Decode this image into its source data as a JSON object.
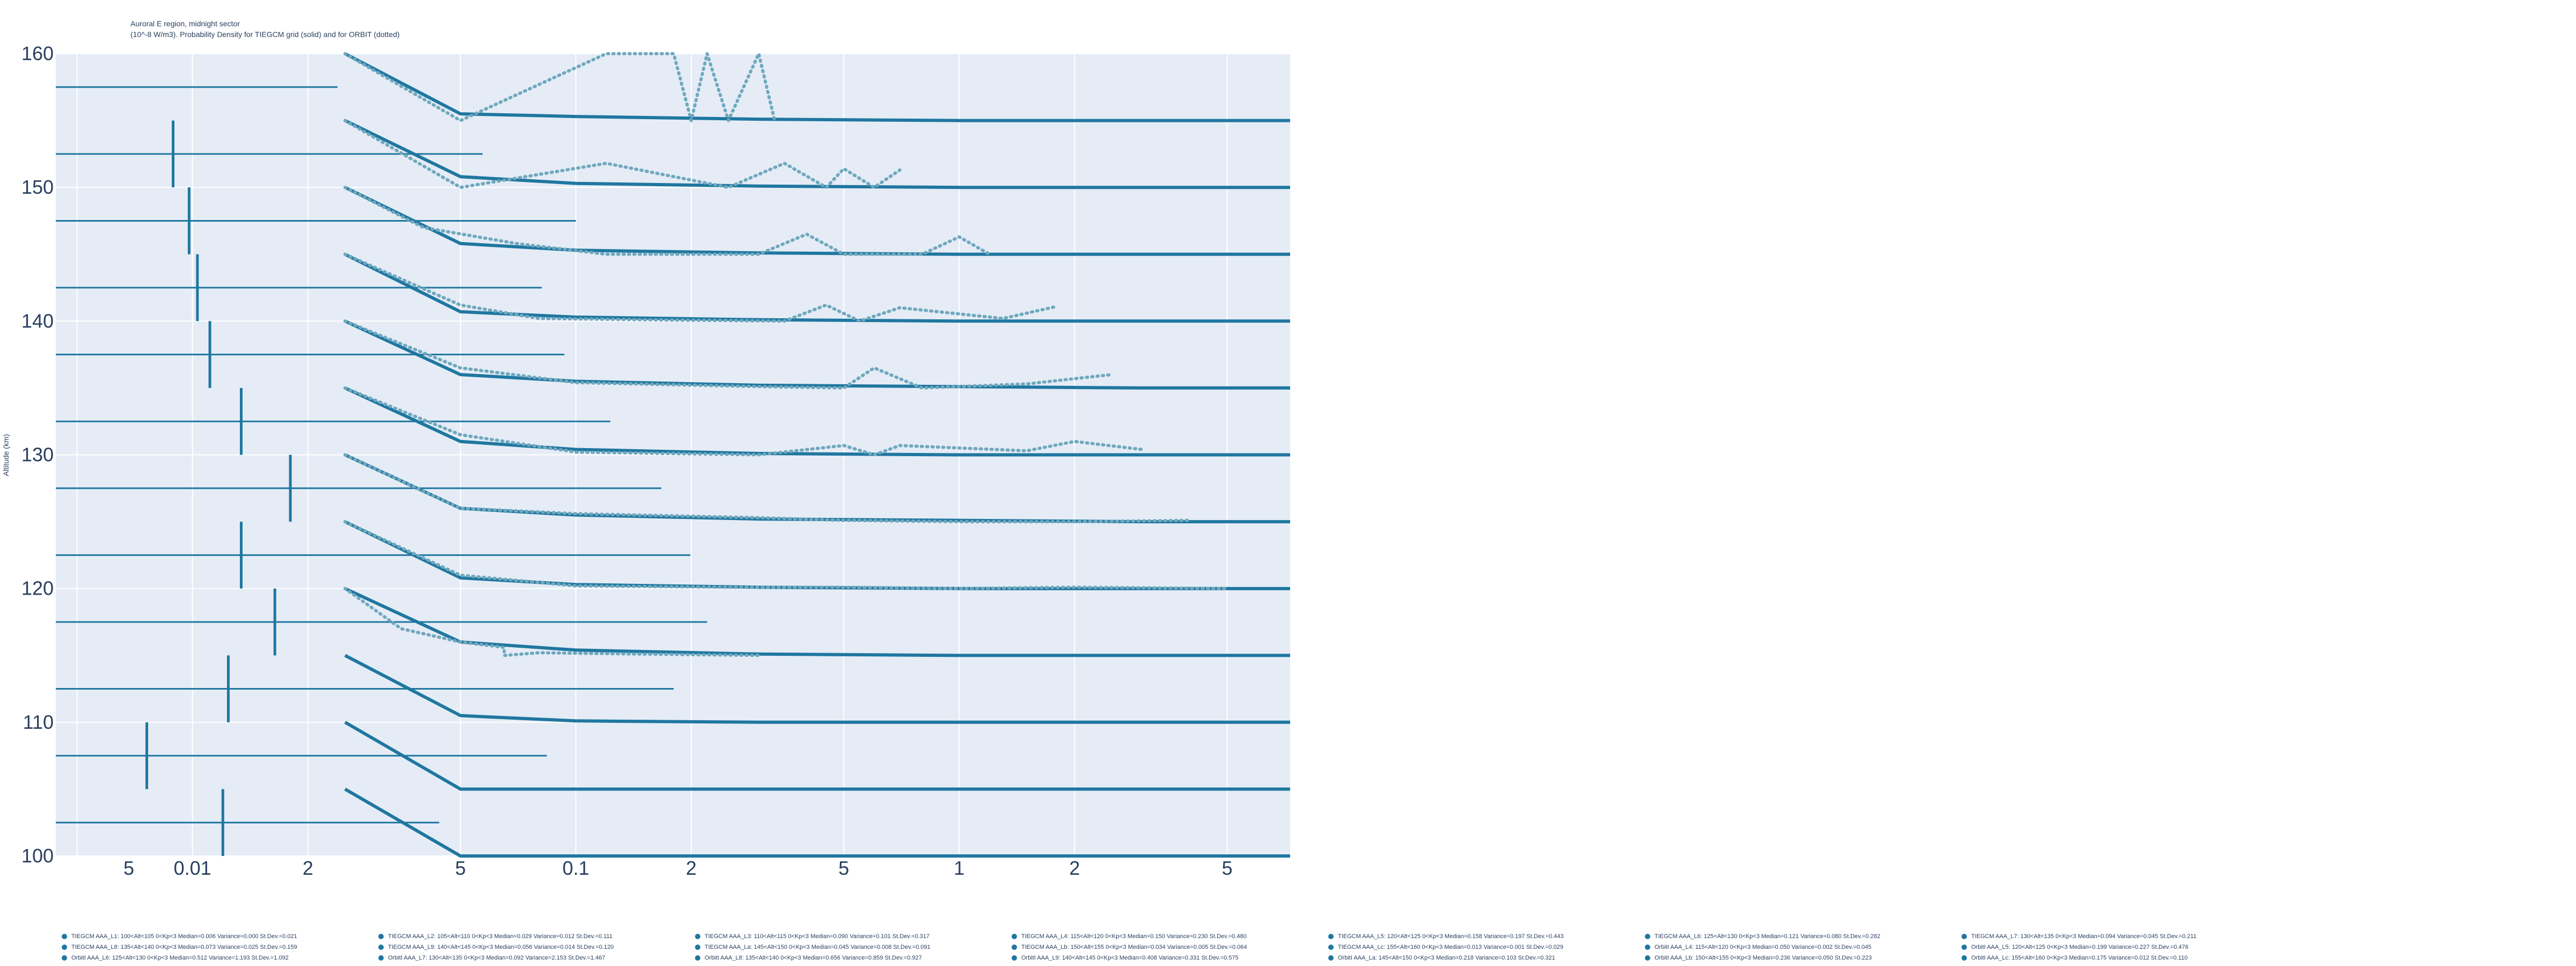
{
  "title": "Auroral E region, midnight sector",
  "subtitle": "(10^-8 W/m3). Probability Density for TIEGCM grid (solid) and for ORBIT (dotted)",
  "colors": {
    "line": "#1f77a0",
    "dotted": "#6fa8be",
    "plot_bg": "#e5ecf6",
    "grid": "#ffffff",
    "text": "#2a3f5f"
  },
  "chart_data": {
    "type": "line",
    "title": "Auroral E region, midnight sector",
    "subtitle": "(10^-8 W/m3). Probability Density for TIEGCM grid (solid) and for ORBIT (dotted)",
    "ylabel": "Altitude (km)",
    "xlabel": "",
    "xscale": "log",
    "xlim": [
      0.0044,
      7.3
    ],
    "ylim": [
      100,
      160
    ],
    "grid": true,
    "x_ticks": [
      {
        "v": 0.002,
        "label": "2"
      },
      {
        "v": 0.005,
        "label": "5"
      },
      {
        "v": 0.01,
        "label": "0.01"
      },
      {
        "v": 0.02,
        "label": "2"
      },
      {
        "v": 0.05,
        "label": "5"
      },
      {
        "v": 0.1,
        "label": "0.1"
      },
      {
        "v": 0.2,
        "label": "2"
      },
      {
        "v": 0.5,
        "label": "5"
      },
      {
        "v": 1,
        "label": "1"
      },
      {
        "v": 2,
        "label": "2"
      },
      {
        "v": 5,
        "label": "5"
      }
    ],
    "y_ticks": [
      100,
      110,
      120,
      130,
      140,
      150,
      160
    ],
    "box_bins": [
      {
        "base": 102.5,
        "median": 0.012,
        "low": 0.0044,
        "high": 0.044
      },
      {
        "base": 107.5,
        "median": 0.0076,
        "low": 0.0044,
        "high": 0.084
      },
      {
        "base": 112.5,
        "median": 0.0124,
        "low": 0.0044,
        "high": 0.18
      },
      {
        "base": 117.5,
        "median": 0.0164,
        "low": 0.0044,
        "high": 0.22
      },
      {
        "base": 122.5,
        "median": 0.0134,
        "low": 0.0044,
        "high": 0.199
      },
      {
        "base": 127.5,
        "median": 0.018,
        "low": 0.0044,
        "high": 0.167
      },
      {
        "base": 132.5,
        "median": 0.0134,
        "low": 0.0044,
        "high": 0.123
      },
      {
        "base": 137.5,
        "median": 0.0111,
        "low": 0.0044,
        "high": 0.0933
      },
      {
        "base": 142.5,
        "median": 0.0103,
        "low": 0.0044,
        "high": 0.0815
      },
      {
        "base": 147.5,
        "median": 0.0098,
        "low": 0.0044,
        "high": 0.1
      },
      {
        "base": 152.5,
        "median": 0.0089,
        "low": 0.0044,
        "high": 0.0571
      },
      {
        "base": 157.5,
        "median": 0.0029,
        "low": 0.0044,
        "high": 0.0239
      }
    ],
    "series": [
      {
        "style": "solid",
        "x": [
          0.025,
          0.05,
          0.1,
          0.3,
          1,
          3,
          7.3
        ],
        "y": [
          105,
          100,
          100,
          100,
          100,
          100,
          100
        ]
      },
      {
        "style": "solid",
        "x": [
          0.025,
          0.05,
          0.1,
          0.3,
          1,
          3,
          7.3
        ],
        "y": [
          110,
          105,
          105,
          105,
          105,
          105,
          105
        ]
      },
      {
        "style": "solid",
        "x": [
          0.025,
          0.05,
          0.1,
          0.3,
          1,
          3,
          7.3
        ],
        "y": [
          115,
          110.5,
          110.1,
          110,
          110,
          110,
          110
        ]
      },
      {
        "style": "solid",
        "x": [
          0.025,
          0.05,
          0.1,
          0.3,
          1,
          3,
          7.3
        ],
        "y": [
          120,
          116,
          115.4,
          115.1,
          115,
          115,
          115
        ]
      },
      {
        "style": "solid",
        "x": [
          0.025,
          0.05,
          0.1,
          0.3,
          1,
          3,
          7.3
        ],
        "y": [
          125,
          120.8,
          120.3,
          120.1,
          120,
          120,
          120
        ]
      },
      {
        "style": "solid",
        "x": [
          0.025,
          0.05,
          0.1,
          0.3,
          1,
          3,
          7.3
        ],
        "y": [
          130,
          126,
          125.5,
          125.2,
          125.1,
          125,
          125
        ]
      },
      {
        "style": "solid",
        "x": [
          0.025,
          0.05,
          0.1,
          0.3,
          1,
          3,
          7.3
        ],
        "y": [
          135,
          131,
          130.4,
          130.1,
          130,
          130,
          130
        ]
      },
      {
        "style": "solid",
        "x": [
          0.025,
          0.05,
          0.1,
          0.3,
          1,
          3,
          7.3
        ],
        "y": [
          140,
          136,
          135.5,
          135.2,
          135.1,
          135,
          135
        ]
      },
      {
        "style": "solid",
        "x": [
          0.025,
          0.05,
          0.1,
          0.3,
          1,
          3,
          7.3
        ],
        "y": [
          145,
          140.7,
          140.3,
          140.1,
          140,
          140,
          140
        ]
      },
      {
        "style": "solid",
        "x": [
          0.025,
          0.05,
          0.1,
          0.3,
          1,
          3,
          7.3
        ],
        "y": [
          150,
          145.8,
          145.3,
          145.1,
          145,
          145,
          145
        ]
      },
      {
        "style": "solid",
        "x": [
          0.025,
          0.05,
          0.1,
          0.3,
          1,
          3,
          7.3
        ],
        "y": [
          155,
          150.8,
          150.3,
          150.1,
          150,
          150,
          150
        ]
      },
      {
        "style": "solid",
        "x": [
          0.025,
          0.05,
          0.1,
          0.3,
          1,
          3,
          7.3
        ],
        "y": [
          160,
          155.5,
          155.3,
          155.1,
          155,
          155,
          155
        ]
      },
      {
        "style": "dotted",
        "x": [
          0.025,
          0.035,
          0.05,
          0.065,
          0.065,
          0.08,
          0.15,
          0.3
        ],
        "y": [
          120,
          117,
          116,
          115.6,
          115,
          115.2,
          115.1,
          115
        ]
      },
      {
        "style": "dotted",
        "x": [
          0.025,
          0.05,
          0.1,
          0.25,
          0.5,
          1,
          2,
          5
        ],
        "y": [
          125,
          121,
          120.2,
          120.1,
          120.1,
          120,
          120.1,
          120
        ]
      },
      {
        "style": "dotted",
        "x": [
          0.025,
          0.05,
          0.1,
          0.3,
          0.5,
          1,
          2,
          4
        ],
        "y": [
          130,
          126,
          125.6,
          125.3,
          125.1,
          125,
          125,
          125.1
        ]
      },
      {
        "style": "dotted",
        "x": [
          0.025,
          0.05,
          0.1,
          0.3,
          0.5,
          0.6,
          0.7,
          1.5,
          2,
          3
        ],
        "y": [
          135,
          131.5,
          130.2,
          130,
          130.7,
          130,
          130.7,
          130.3,
          131,
          130.4
        ]
      },
      {
        "style": "dotted",
        "x": [
          0.025,
          0.05,
          0.1,
          0.3,
          0.5,
          0.6,
          0.8,
          1.5,
          2.5
        ],
        "y": [
          140,
          136.5,
          135.4,
          135.1,
          135,
          136.5,
          135,
          135.3,
          136
        ]
      },
      {
        "style": "dotted",
        "x": [
          0.025,
          0.05,
          0.08,
          0.15,
          0.35,
          0.45,
          0.55,
          0.7,
          1.3,
          1.8
        ],
        "y": [
          145,
          141.2,
          140.2,
          140.1,
          140,
          141.2,
          140,
          141,
          140.2,
          141.1
        ]
      },
      {
        "style": "dotted",
        "x": [
          0.025,
          0.04,
          0.07,
          0.12,
          0.3,
          0.4,
          0.5,
          0.8,
          1,
          1.2
        ],
        "y": [
          150,
          147,
          145.8,
          145,
          145,
          146.5,
          145,
          145,
          146.3,
          145
        ]
      },
      {
        "style": "dotted",
        "x": [
          0.025,
          0.05,
          0.12,
          0.25,
          0.35,
          0.45,
          0.5,
          0.6,
          0.7
        ],
        "y": [
          155,
          150,
          151.8,
          150,
          151.8,
          150,
          151.4,
          150,
          151.3
        ]
      },
      {
        "style": "dotted",
        "x": [
          0.025,
          0.05,
          0.12,
          0.18,
          0.2,
          0.22,
          0.25,
          0.3,
          0.33
        ],
        "y": [
          160,
          155,
          160,
          160,
          155,
          160,
          155,
          160,
          155
        ]
      }
    ]
  },
  "legend": [
    "TIEGCM AAA_L1: 100<Alt<105 0<Kp<3 Median=0.006 Variance=0.000 St.Dev.=0.021",
    "TIEGCM AAA_L2: 105<Alt<110 0<Kp<3 Median=0.029 Variance=0.012 St.Dev.=0.111",
    "TIEGCM AAA_L3: 110<Alt<115 0<Kp<3 Median=0.090 Variance=0.101 St.Dev.=0.317",
    "TIEGCM AAA_L4: 115<Alt<120 0<Kp<3 Median=0.150 Variance=0.230 St.Dev.=0.480",
    "TIEGCM AAA_L5: 120<Alt<125 0<Kp<3 Median=0.158 Variance=0.197 St.Dev.=0.443",
    "TIEGCM AAA_L6: 125<Alt<130 0<Kp<3 Median=0.121 Variance=0.080 St.Dev.=0.282",
    "TIEGCM AAA_L7: 130<Alt<135 0<Kp<3 Median=0.094 Variance=0.045 St.Dev.=0.211",
    "TIEGCM AAA_L8: 135<Alt<140 0<Kp<3 Median=0.073 Variance=0.025 St.Dev.=0.159",
    "TIEGCM AAA_L9: 140<Alt<145 0<Kp<3 Median=0.056 Variance=0.014 St.Dev.=0.120",
    "TIEGCM AAA_La: 145<Alt<150 0<Kp<3 Median=0.045 Variance=0.008 St.Dev.=0.091",
    "TIEGCM AAA_Lb: 150<Alt<155 0<Kp<3 Median=0.034 Variance=0.005 St.Dev.=0.064",
    "TIEGCM AAA_Lc: 155<Alt<160 0<Kp<3 Median=0.013 Variance=0.001 St.Dev.=0.029",
    "OrbitI AAA_L4: 115<Alt<120 0<Kp<3 Median=0.050 Variance=0.002 St.Dev.=0.045",
    "OrbitI AAA_L5: 120<Alt<125 0<Kp<3 Median=0.199 Variance=0.227 St.Dev.=0.476",
    "OrbitI AAA_L6: 125<Alt<130 0<Kp<3 Median=0.512 Variance=1.193 St.Dev.=1.092",
    "OrbitI AAA_L7: 130<Alt<135 0<Kp<3 Median=0.092 Variance=2.153 St.Dev.=1.467",
    "OrbitI AAA_L8: 135<Alt<140 0<Kp<3 Median=0.656 Variance=0.859 St.Dev.=0.927",
    "OrbitI AAA_L9: 140<Alt<145 0<Kp<3 Median=0.408 Variance=0.331 St.Dev.=0.575",
    "OrbitI AAA_La: 145<Alt<150 0<Kp<3 Median=0.218 Variance=0.103 St.Dev.=0.321",
    "OrbitI AAA_Lb: 150<Alt<155 0<Kp<3 Median=0.236 Variance=0.050 St.Dev.=0.223",
    "OrbitI AAA_Lc: 155<Alt<160 0<Kp<3 Median=0.175 Variance=0.012 St.Dev.=0.110"
  ]
}
